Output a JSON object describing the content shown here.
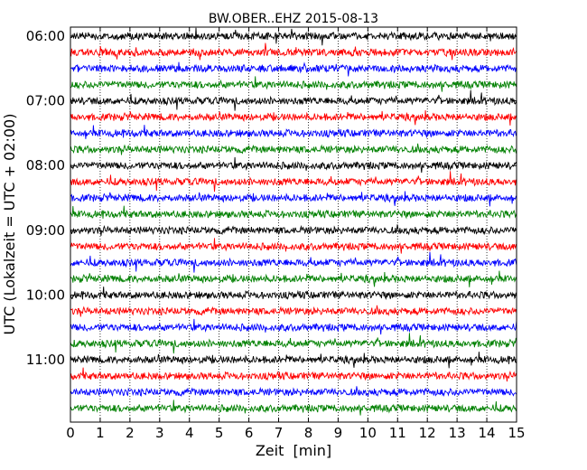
{
  "chart_data": {
    "type": "line",
    "title": "BW.OBER..EHZ 2015-08-13",
    "xlabel": "Zeit  [min]",
    "ylabel": "UTC (Lokalzeit = UTC + 02:00)",
    "xlim": [
      0,
      15
    ],
    "x_ticks": [
      "0",
      "1",
      "2",
      "3",
      "4",
      "5",
      "6",
      "7",
      "8",
      "9",
      "10",
      "11",
      "12",
      "13",
      "14",
      "15"
    ],
    "y_tick_labels": [
      "06:00",
      "07:00",
      "08:00",
      "09:00",
      "10:00",
      "11:00"
    ],
    "traces_per_hour": 4,
    "trace_start_times": [
      "06:00",
      "06:15",
      "06:30",
      "06:45",
      "07:00",
      "07:15",
      "07:30",
      "07:45",
      "08:00",
      "08:15",
      "08:30",
      "08:45",
      "09:00",
      "09:15",
      "09:30",
      "09:45",
      "10:00",
      "10:15",
      "10:30",
      "10:45",
      "11:00",
      "11:15",
      "11:30",
      "11:45"
    ],
    "color_cycle": [
      "#000000",
      "#ff0000",
      "#0000ff",
      "#008000"
    ],
    "vertical_grid": "dotted, every minute",
    "legend": "none"
  }
}
